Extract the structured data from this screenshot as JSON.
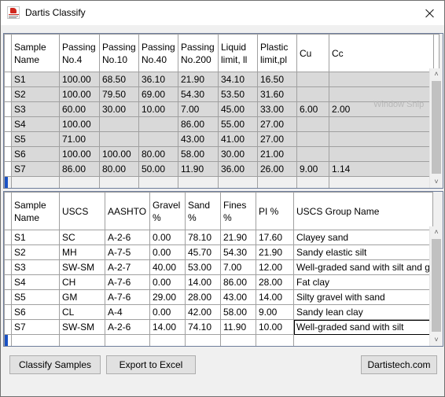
{
  "window": {
    "title": "Dartis Classify"
  },
  "samples_grid": {
    "columns": [
      "Sample Name",
      "Passing No.4",
      "Passing No.10",
      "Passing No.40",
      "Passing No.200",
      "Liquid limit, ll",
      "Plastic limit,pl",
      "Cu",
      "Cc"
    ],
    "rows": [
      [
        "S1",
        "100.00",
        "68.50",
        "36.10",
        "21.90",
        "34.10",
        "16.50",
        "",
        ""
      ],
      [
        "S2",
        "100.00",
        "79.50",
        "69.00",
        "54.30",
        "53.50",
        "31.60",
        "",
        ""
      ],
      [
        "S3",
        "60.00",
        "30.00",
        "10.00",
        "7.00",
        "45.00",
        "33.00",
        "6.00",
        "2.00"
      ],
      [
        "S4",
        "100.00",
        "",
        "",
        "86.00",
        "55.00",
        "27.00",
        "",
        ""
      ],
      [
        "S5",
        "71.00",
        "",
        "",
        "43.00",
        "41.00",
        "27.00",
        "",
        ""
      ],
      [
        "S6",
        "100.00",
        "100.00",
        "80.00",
        "58.00",
        "30.00",
        "21.00",
        "",
        ""
      ],
      [
        "S7",
        "86.00",
        "80.00",
        "50.00",
        "11.90",
        "36.00",
        "26.00",
        "9.00",
        "1.14"
      ]
    ],
    "watermark": "Window Snip"
  },
  "results_grid": {
    "columns": [
      "Sample Name",
      "USCS",
      "AASHTO",
      "Gravel %",
      "Sand %",
      "Fines %",
      "PI %",
      "USCS Group Name"
    ],
    "rows": [
      [
        "S1",
        "SC",
        "A-2-6",
        "0.00",
        "78.10",
        "21.90",
        "17.60",
        "Clayey sand"
      ],
      [
        "S2",
        "MH",
        "A-7-5",
        "0.00",
        "45.70",
        "54.30",
        "21.90",
        "Sandy elastic silt"
      ],
      [
        "S3",
        "SW-SM",
        "A-2-7",
        "40.00",
        "53.00",
        "7.00",
        "12.00",
        "Well-graded sand with silt and g"
      ],
      [
        "S4",
        "CH",
        "A-7-6",
        "0.00",
        "14.00",
        "86.00",
        "28.00",
        "Fat clay"
      ],
      [
        "S5",
        "GM",
        "A-7-6",
        "29.00",
        "28.00",
        "43.00",
        "14.00",
        "Silty gravel with sand"
      ],
      [
        "S6",
        "CL",
        "A-4",
        "0.00",
        "42.00",
        "58.00",
        "9.00",
        "Sandy lean clay"
      ],
      [
        "S7",
        "SW-SM",
        "A-2-6",
        "14.00",
        "74.10",
        "11.90",
        "10.00",
        "Well-graded sand with silt"
      ]
    ]
  },
  "buttons": {
    "classify": "Classify Samples",
    "export": "Export to Excel",
    "website": "Dartistech.com"
  },
  "colors": {
    "row_background": "#d9d9d9",
    "cursor": "#1a52c4",
    "border": "#a0a0a0"
  },
  "icons": {
    "app": "dartis-app-icon",
    "close": "close-icon"
  }
}
